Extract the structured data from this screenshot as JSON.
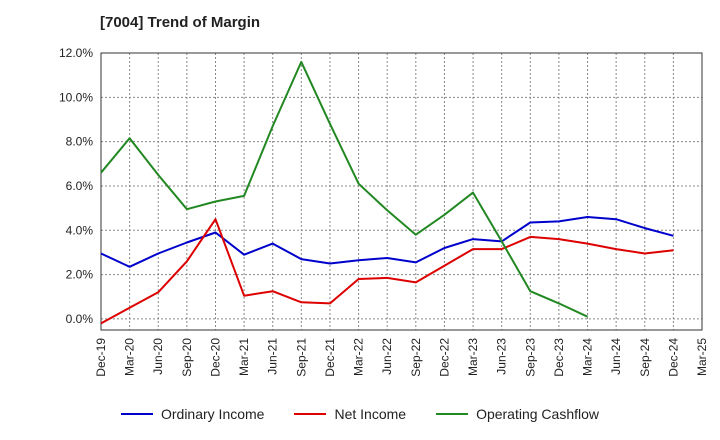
{
  "title": "[7004]  Trend of Margin",
  "colors": {
    "ordinary": "#0000cc",
    "net": "#dd0000",
    "cashflow": "#228822",
    "grid": "#888888"
  },
  "chart_data": {
    "type": "line",
    "title": "[7004]  Trend of Margin",
    "xlabel": "",
    "ylabel": "",
    "x": [
      "Dec-19",
      "Mar-20",
      "Jun-20",
      "Sep-20",
      "Dec-20",
      "Mar-21",
      "Jun-21",
      "Sep-21",
      "Dec-21",
      "Mar-22",
      "Jun-22",
      "Sep-22",
      "Dec-22",
      "Mar-23",
      "Jun-23",
      "Sep-23",
      "Dec-23",
      "Mar-24",
      "Jun-24",
      "Sep-24",
      "Dec-24",
      "Mar-25"
    ],
    "ylim": [
      -0.5,
      12.0
    ],
    "yticks": [
      0.0,
      2.0,
      4.0,
      6.0,
      8.0,
      10.0,
      12.0
    ],
    "ytick_labels": [
      "0.0%",
      "2.0%",
      "4.0%",
      "6.0%",
      "8.0%",
      "10.0%",
      "12.0%"
    ],
    "grid": true,
    "legend": "bottom",
    "series": [
      {
        "name": "Ordinary Income",
        "color": "#0000cc",
        "values": [
          2.95,
          2.35,
          2.95,
          3.45,
          3.9,
          2.9,
          3.4,
          2.7,
          2.5,
          2.65,
          2.75,
          2.55,
          3.2,
          3.6,
          3.5,
          4.35,
          4.4,
          4.6,
          4.5,
          4.1,
          3.75,
          null
        ]
      },
      {
        "name": "Net Income",
        "color": "#dd0000",
        "values": [
          -0.2,
          0.5,
          1.2,
          2.6,
          4.5,
          1.05,
          1.25,
          0.75,
          0.7,
          1.8,
          1.85,
          1.65,
          2.4,
          3.15,
          3.15,
          3.7,
          3.6,
          3.4,
          3.15,
          2.95,
          3.1,
          null
        ]
      },
      {
        "name": "Operating Cashflow",
        "color": "#228822",
        "values": [
          6.6,
          8.15,
          6.5,
          4.95,
          5.3,
          5.55,
          8.7,
          11.6,
          8.8,
          6.1,
          4.9,
          3.8,
          4.7,
          5.7,
          3.5,
          1.25,
          0.7,
          0.1,
          null,
          null,
          null,
          null
        ]
      }
    ]
  }
}
